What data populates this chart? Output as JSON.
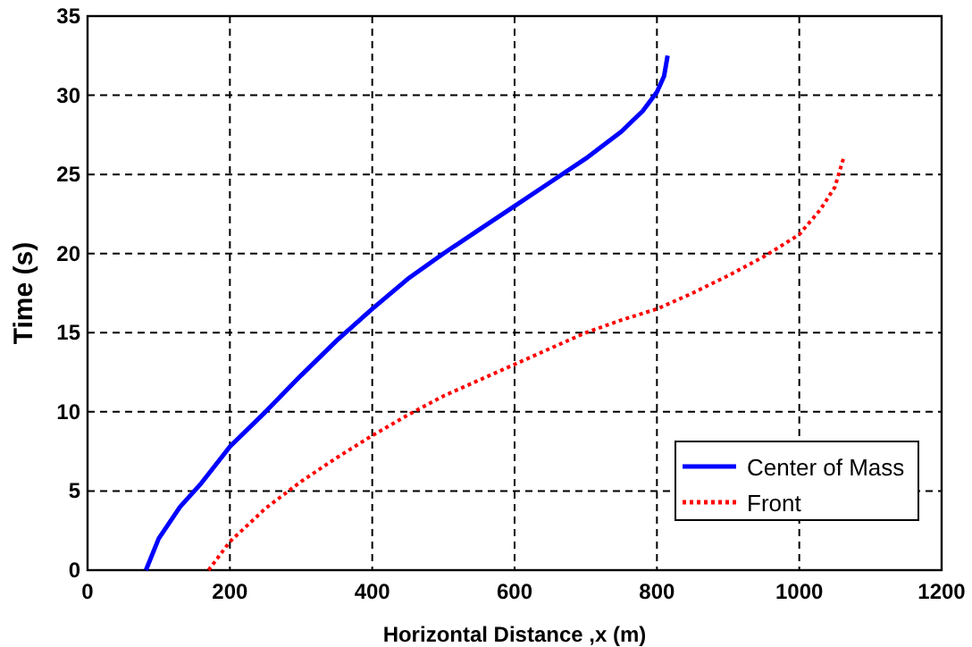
{
  "chart_data": {
    "type": "line",
    "xlabel": "Horizontal Distance ,x (m)",
    "ylabel": "Time (s)",
    "xlim": [
      0,
      1200
    ],
    "xticks": [
      0,
      200,
      400,
      600,
      800,
      1000,
      1200
    ],
    "ylim": [
      0,
      35
    ],
    "yticks": [
      0,
      5,
      10,
      15,
      20,
      25,
      30,
      35
    ],
    "grid": true,
    "legend": "bottom right",
    "series": [
      {
        "name": "Center of Mass",
        "color": "#0000ff",
        "line_style": "solid",
        "x": [
          82,
          100,
          130,
          160,
          200,
          250,
          300,
          350,
          400,
          450,
          500,
          550,
          600,
          650,
          700,
          750,
          780,
          800,
          810,
          815
        ],
        "values": [
          0,
          2,
          4,
          5.5,
          7.8,
          10,
          12.3,
          14.5,
          16.5,
          18.4,
          20,
          21.5,
          23,
          24.5,
          26,
          27.7,
          29,
          30.2,
          31.2,
          32.5
        ]
      },
      {
        "name": "Front",
        "color": "#ff0000",
        "line_style": "dotted",
        "x": [
          170,
          200,
          250,
          300,
          350,
          400,
          450,
          500,
          550,
          600,
          650,
          700,
          750,
          800,
          850,
          900,
          950,
          1000,
          1030,
          1050,
          1062
        ],
        "values": [
          0,
          1.8,
          3.9,
          5.6,
          7.1,
          8.5,
          9.8,
          11,
          12,
          13,
          14,
          15,
          15.8,
          16.5,
          17.5,
          18.6,
          19.8,
          21.2,
          22.8,
          24.2,
          26
        ]
      }
    ]
  }
}
